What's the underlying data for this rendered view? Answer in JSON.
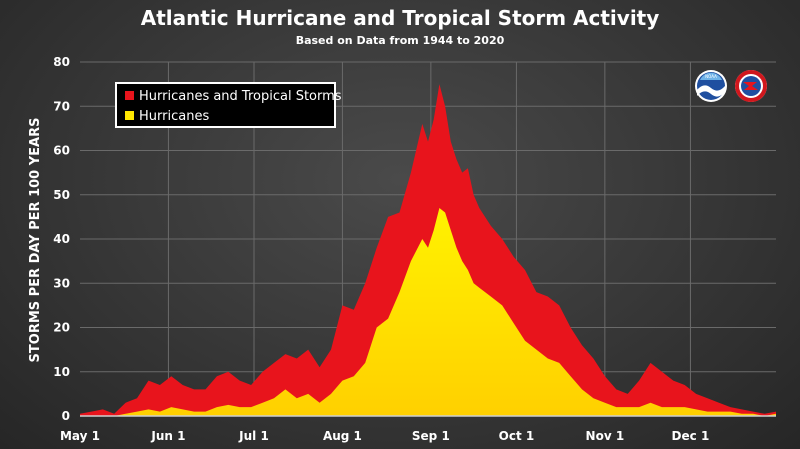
{
  "chart_data": {
    "type": "area",
    "title": "Atlantic Hurricane and Tropical Storm Activity",
    "subtitle": "Based on Data from 1944 to 2020",
    "ylabel": "STORMS PER DAY PER 100 YEARS",
    "xlabel": "",
    "ylim": [
      0,
      80
    ],
    "yticks": [
      0,
      10,
      20,
      30,
      40,
      50,
      60,
      70,
      80
    ],
    "xlim": [
      "May 1",
      "Dec 31"
    ],
    "xticks": [
      {
        "label": "May 1",
        "day": 0
      },
      {
        "label": "Jun 1",
        "day": 31
      },
      {
        "label": "Jul 1",
        "day": 61
      },
      {
        "label": "Aug 1",
        "day": 92
      },
      {
        "label": "Sep 1",
        "day": 123
      },
      {
        "label": "Oct 1",
        "day": 153
      },
      {
        "label": "Nov 1",
        "day": 184
      },
      {
        "label": "Dec 1",
        "day": 214
      }
    ],
    "x_unit": "days since May 1",
    "grid": true,
    "legend_position": "top-left",
    "series": [
      {
        "name": "Hurricanes and Tropical Storms",
        "color": "#e8141c",
        "x": [
          0,
          4,
          8,
          12,
          16,
          20,
          24,
          28,
          32,
          36,
          40,
          44,
          48,
          52,
          56,
          60,
          64,
          68,
          72,
          76,
          80,
          84,
          88,
          92,
          96,
          100,
          104,
          108,
          112,
          116,
          120,
          122,
          124,
          126,
          128,
          130,
          132,
          134,
          136,
          138,
          140,
          144,
          148,
          152,
          156,
          160,
          164,
          168,
          172,
          176,
          180,
          184,
          188,
          192,
          196,
          200,
          204,
          208,
          212,
          216,
          220,
          224,
          228,
          232,
          236,
          240,
          244
        ],
        "values": [
          0.5,
          1,
          1.5,
          0.5,
          3,
          4,
          8,
          7,
          9,
          7,
          6,
          6,
          9,
          10,
          8,
          7,
          10,
          12,
          14,
          13,
          15,
          11,
          15,
          25,
          24,
          30,
          38,
          45,
          46,
          55,
          66,
          62,
          67,
          75,
          70,
          62,
          58,
          55,
          56,
          50,
          47,
          43,
          40,
          36,
          33,
          28,
          27,
          25,
          20,
          16,
          13,
          9,
          6,
          5,
          8,
          12,
          10,
          8,
          7,
          5,
          4,
          3,
          2,
          1.5,
          1,
          0.5,
          1
        ]
      },
      {
        "name": "Hurricanes",
        "color": "#ffe600",
        "x": [
          0,
          4,
          8,
          12,
          16,
          20,
          24,
          28,
          32,
          36,
          40,
          44,
          48,
          52,
          56,
          60,
          64,
          68,
          72,
          76,
          80,
          84,
          88,
          92,
          96,
          100,
          104,
          108,
          112,
          116,
          120,
          122,
          124,
          126,
          128,
          130,
          132,
          134,
          136,
          138,
          140,
          144,
          148,
          152,
          156,
          160,
          164,
          168,
          172,
          176,
          180,
          184,
          188,
          192,
          196,
          200,
          204,
          208,
          212,
          216,
          220,
          224,
          228,
          232,
          236,
          240,
          244
        ],
        "values": [
          0,
          0,
          0,
          0,
          0.5,
          1,
          1.5,
          1,
          2,
          1.5,
          1,
          1,
          2,
          2.5,
          2,
          2,
          3,
          4,
          6,
          4,
          5,
          3,
          5,
          8,
          9,
          12,
          20,
          22,
          28,
          35,
          40,
          38,
          42,
          47,
          46,
          42,
          38,
          35,
          33,
          30,
          29,
          27,
          25,
          21,
          17,
          15,
          13,
          12,
          9,
          6,
          4,
          3,
          2,
          2,
          2,
          3,
          2,
          2,
          2,
          1.5,
          1,
          1,
          1,
          0.5,
          0.5,
          0,
          0.5
        ]
      }
    ],
    "legend": [
      {
        "label": "Hurricanes and Tropical Storms",
        "color": "#e8141c"
      },
      {
        "label": "Hurricanes",
        "color": "#ffe600"
      }
    ],
    "logos": [
      {
        "name": "noaa-logo",
        "text": "NOAA"
      },
      {
        "name": "nws-logo",
        "text": "NATIONAL WEATHER SERVICE"
      }
    ]
  }
}
